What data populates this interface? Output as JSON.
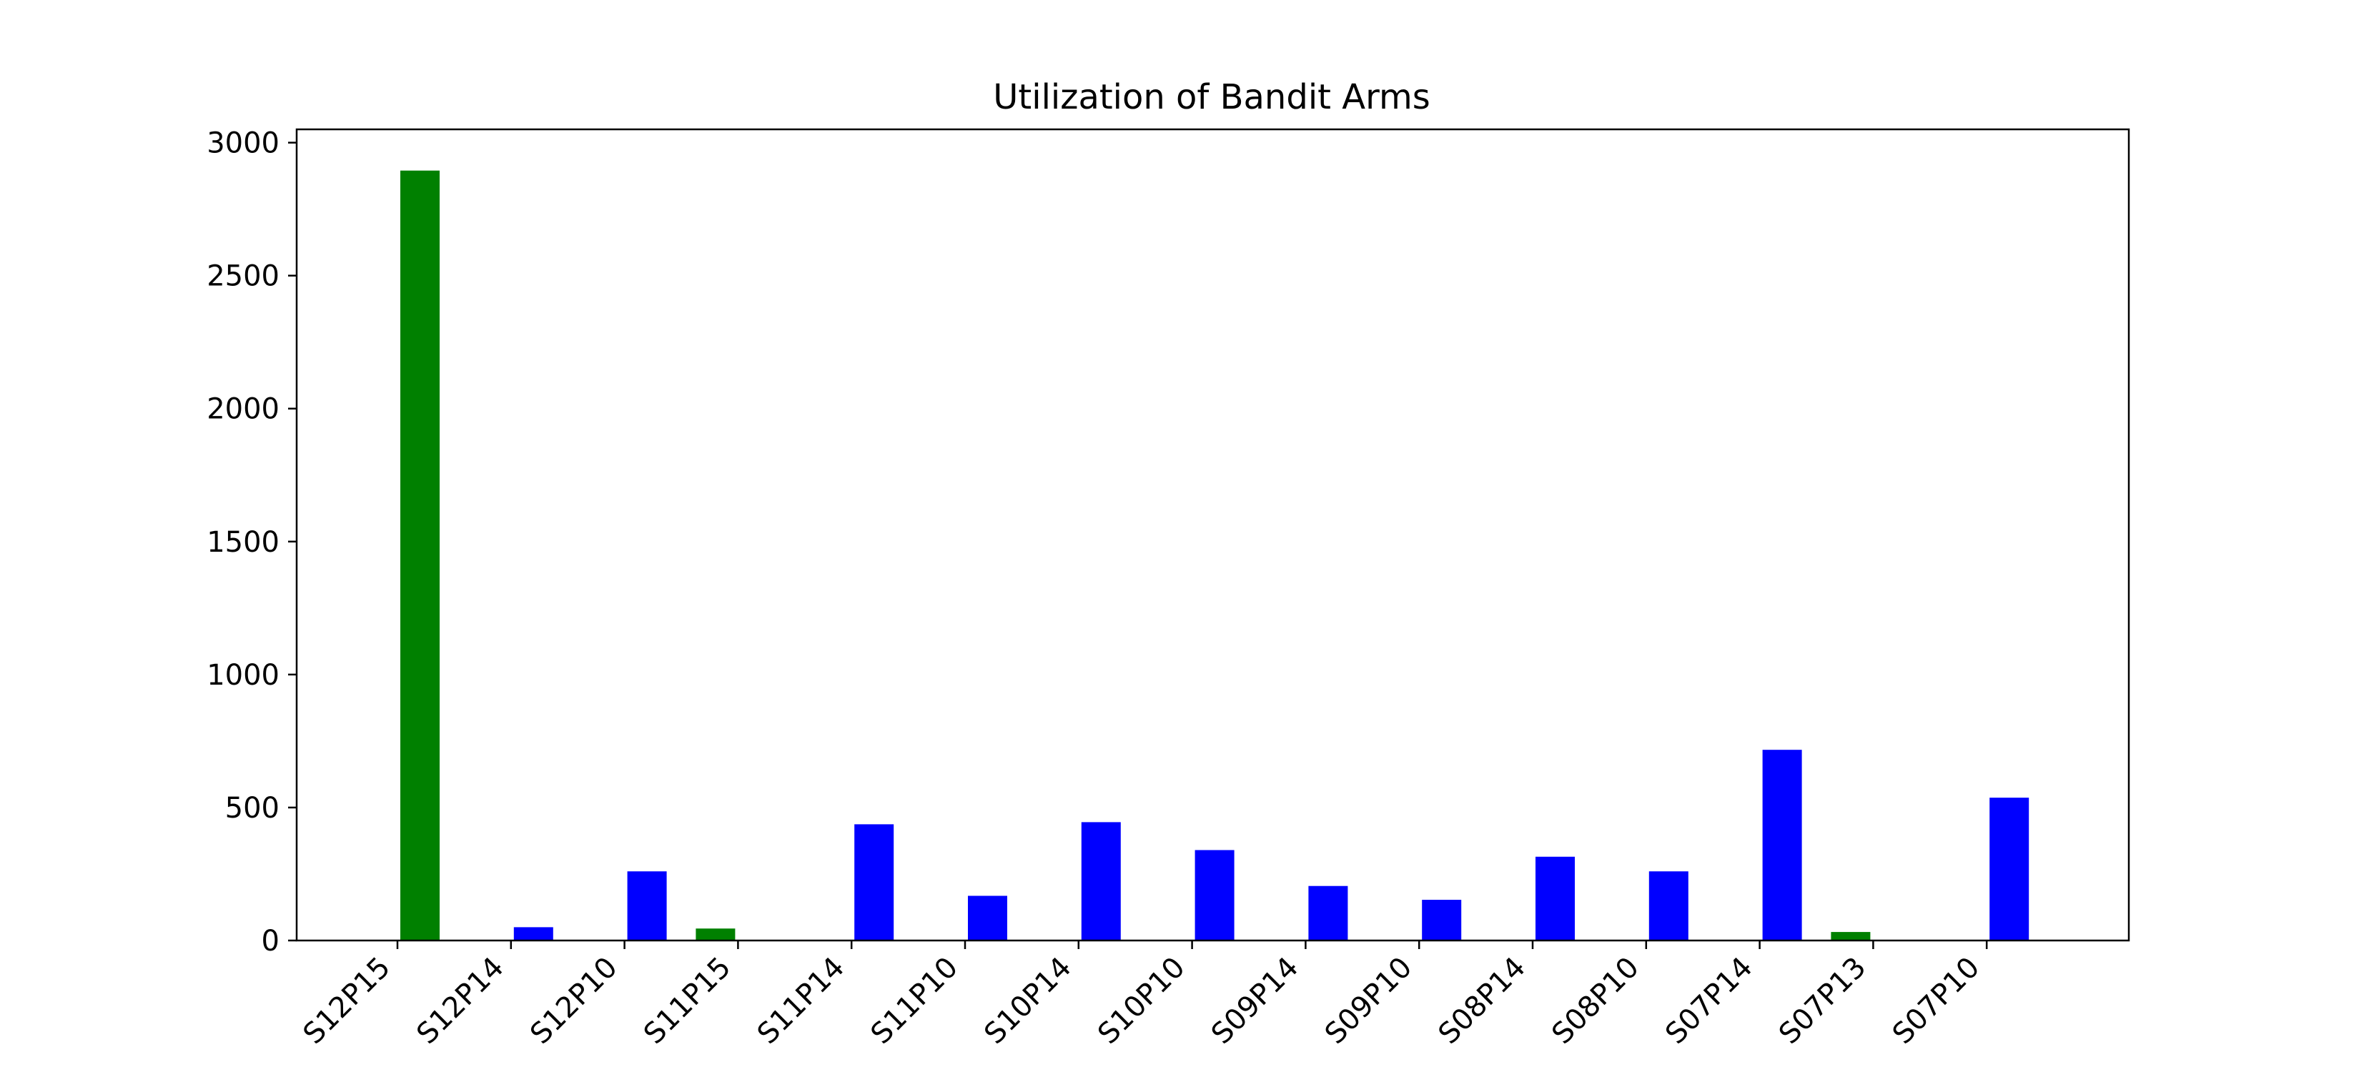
{
  "chart_data": {
    "type": "bar",
    "title": "Utilization of Bandit Arms",
    "xlabel": "",
    "ylabel": "",
    "ylim": [
      0,
      3050
    ],
    "y_ticks": [
      0,
      500,
      1000,
      1500,
      2000,
      2500,
      3000
    ],
    "grid": false,
    "legend": "none",
    "tick_labels": [
      "S12P15",
      "S12P14",
      "S12P10",
      "S11P15",
      "S11P14",
      "S11P10",
      "S10P14",
      "S10P10",
      "S09P14",
      "S09P10",
      "S08P14",
      "S08P10",
      "S07P14",
      "S07P13",
      "S07P10"
    ],
    "bars": [
      {
        "category_index": 0,
        "offset": "right",
        "value": 2895,
        "color": "#008000"
      },
      {
        "category_index": 1,
        "offset": "right",
        "value": 50,
        "color": "#0000ff"
      },
      {
        "category_index": 2,
        "offset": "right",
        "value": 260,
        "color": "#0000ff"
      },
      {
        "category_index": 3,
        "offset": "left",
        "value": 45,
        "color": "#008000"
      },
      {
        "category_index": 4,
        "offset": "right",
        "value": 437,
        "color": "#0000ff"
      },
      {
        "category_index": 5,
        "offset": "right",
        "value": 168,
        "color": "#0000ff"
      },
      {
        "category_index": 6,
        "offset": "right",
        "value": 445,
        "color": "#0000ff"
      },
      {
        "category_index": 7,
        "offset": "right",
        "value": 340,
        "color": "#0000ff"
      },
      {
        "category_index": 8,
        "offset": "right",
        "value": 205,
        "color": "#0000ff"
      },
      {
        "category_index": 9,
        "offset": "right",
        "value": 153,
        "color": "#0000ff"
      },
      {
        "category_index": 10,
        "offset": "right",
        "value": 315,
        "color": "#0000ff"
      },
      {
        "category_index": 11,
        "offset": "right",
        "value": 260,
        "color": "#0000ff"
      },
      {
        "category_index": 12,
        "offset": "right",
        "value": 717,
        "color": "#0000ff"
      },
      {
        "category_index": 13,
        "offset": "left",
        "value": 32,
        "color": "#008000"
      },
      {
        "category_index": 14,
        "offset": "right",
        "value": 537,
        "color": "#0000ff"
      }
    ],
    "colors": {
      "highlight": "#008000",
      "default": "#0000ff"
    }
  }
}
